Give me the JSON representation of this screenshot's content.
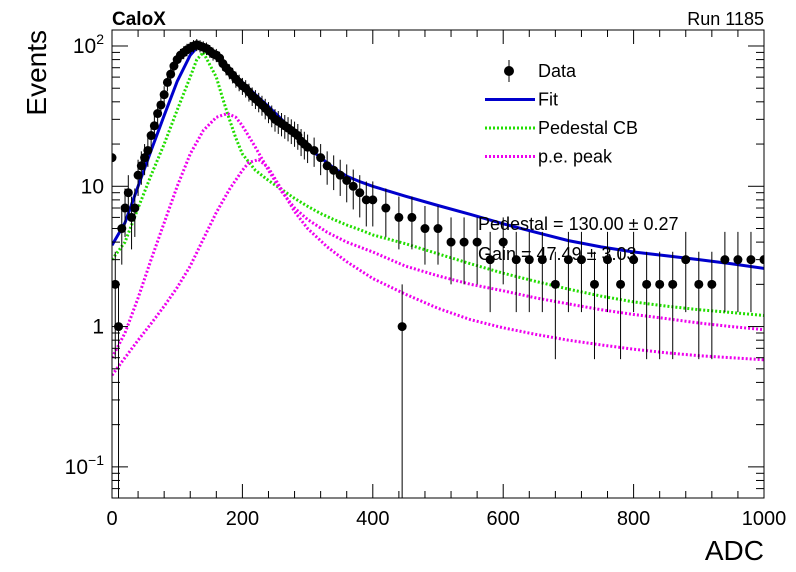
{
  "header": {
    "experiment": "CaloX",
    "run": "Run 1185"
  },
  "overlay": {
    "line1": "Pedestal = 130.00 ± 0.27",
    "line2": "Gain = 47.49 ± 3.03"
  },
  "chart_data": {
    "type": "scatter",
    "xlabel": "ADC",
    "ylabel": "Events",
    "xlim": [
      0,
      1000
    ],
    "ylim": [
      0.06,
      130
    ],
    "y_scale": "log",
    "x_ticks": [
      0,
      200,
      400,
      600,
      800,
      1000
    ],
    "y_ticks": [
      {
        "value": 0.1,
        "base": "10",
        "exp": "−1"
      },
      {
        "value": 1,
        "base": "1",
        "exp": ""
      },
      {
        "value": 10,
        "base": "10",
        "exp": ""
      },
      {
        "value": 100,
        "base": "10",
        "exp": "2"
      }
    ],
    "legend_position": "top-right",
    "legend": [
      {
        "label": "Data",
        "style": "marker",
        "color": "#000000"
      },
      {
        "label": "Fit",
        "style": "solid",
        "color": "#0000cc"
      },
      {
        "label": "Pedestal CB",
        "style": "dotted",
        "color": "#22dd00"
      },
      {
        "label": "p.e. peak",
        "style": "dotted",
        "color": "#ee00ee"
      }
    ],
    "data_points": {
      "x": [
        0,
        5,
        10,
        15,
        20,
        25,
        30,
        35,
        40,
        45,
        50,
        55,
        60,
        65,
        70,
        75,
        80,
        85,
        90,
        95,
        100,
        105,
        110,
        115,
        120,
        125,
        130,
        135,
        140,
        145,
        150,
        155,
        160,
        165,
        170,
        175,
        180,
        185,
        190,
        195,
        200,
        205,
        210,
        215,
        220,
        225,
        230,
        235,
        240,
        245,
        250,
        255,
        260,
        265,
        270,
        275,
        280,
        285,
        290,
        295,
        300,
        310,
        320,
        330,
        340,
        350,
        360,
        370,
        380,
        390,
        400,
        420,
        440,
        445,
        460,
        480,
        500,
        520,
        540,
        560,
        580,
        600,
        620,
        640,
        660,
        680,
        700,
        720,
        740,
        760,
        780,
        800,
        820,
        840,
        860,
        880,
        900,
        920,
        940,
        960,
        980,
        1000
      ],
      "y": [
        16,
        2,
        1,
        5,
        7,
        9,
        6,
        7,
        12,
        14,
        16,
        18,
        23,
        27,
        33,
        38,
        45,
        55,
        63,
        72,
        80,
        86,
        90,
        94,
        97,
        100,
        102,
        100,
        98,
        96,
        92,
        88,
        86,
        82,
        75,
        70,
        66,
        62,
        58,
        55,
        52,
        50,
        47,
        44,
        42,
        40,
        38,
        36,
        34,
        32,
        30,
        29,
        28,
        27,
        26,
        25,
        24,
        23,
        21,
        20,
        19,
        18,
        16,
        14,
        13,
        12,
        11,
        10,
        9,
        8,
        8,
        7,
        6,
        1,
        6,
        5,
        5,
        4,
        4,
        4,
        3,
        4,
        3,
        3,
        3,
        2,
        3,
        3,
        2,
        3,
        2,
        3,
        2,
        2,
        2,
        3,
        2,
        2,
        3,
        3,
        3,
        3
      ]
    },
    "series": [
      {
        "name": "Fit",
        "color": "#0000cc",
        "style": "solid",
        "x": [
          0,
          20,
          40,
          60,
          80,
          100,
          120,
          130,
          140,
          160,
          180,
          200,
          220,
          240,
          260,
          280,
          300,
          320,
          340,
          360,
          380,
          400,
          450,
          500,
          550,
          600,
          650,
          700,
          750,
          800,
          850,
          900,
          950,
          1000
        ],
        "y": [
          3.8,
          5.5,
          10,
          18,
          32,
          56,
          86,
          97,
          98,
          85,
          68,
          55,
          45,
          37,
          30,
          24,
          19,
          16,
          13.5,
          11.8,
          10.8,
          10,
          8.5,
          7.3,
          6.3,
          5.4,
          4.7,
          4.1,
          3.7,
          3.4,
          3.2,
          3,
          2.8,
          2.6
        ]
      },
      {
        "name": "Pedestal CB",
        "color": "#22dd00",
        "style": "dotted",
        "x": [
          0,
          20,
          40,
          60,
          80,
          100,
          120,
          130,
          140,
          160,
          170,
          180,
          190,
          200,
          220,
          240,
          260,
          280,
          300,
          320,
          340,
          360,
          380,
          400,
          450,
          500,
          550,
          600,
          650,
          700,
          750,
          800,
          850,
          900,
          950,
          1000
        ],
        "y": [
          3,
          4,
          7,
          12,
          20,
          35,
          60,
          80,
          90,
          60,
          42,
          30,
          22,
          17,
          13,
          11,
          9.5,
          8.2,
          7.2,
          6.4,
          5.8,
          5.3,
          4.9,
          4.5,
          3.9,
          3.3,
          2.8,
          2.4,
          2.1,
          1.85,
          1.65,
          1.5,
          1.4,
          1.32,
          1.26,
          1.2
        ]
      },
      {
        "name": "p.e. peak",
        "color": "#ee00ee",
        "style": "dotted",
        "x": [
          0,
          20,
          40,
          60,
          80,
          100,
          120,
          140,
          160,
          177,
          190,
          200,
          220,
          240,
          260,
          280,
          300,
          330,
          360,
          400,
          450,
          500,
          550,
          600,
          650,
          700,
          750,
          800,
          850,
          900,
          950,
          1000
        ],
        "y": [
          0.6,
          0.9,
          1.6,
          3,
          5.5,
          10,
          17,
          25,
          31,
          33,
          31,
          27,
          19,
          13,
          9.2,
          7,
          5.8,
          4.7,
          4,
          3.4,
          2.7,
          2.3,
          2,
          1.8,
          1.6,
          1.45,
          1.32,
          1.22,
          1.14,
          1.06,
          1,
          0.95
        ]
      },
      {
        "name": "p.e. peak",
        "color": "#ee00ee",
        "style": "dotted",
        "x": [
          0,
          20,
          40,
          60,
          80,
          100,
          120,
          140,
          160,
          180,
          200,
          210,
          225,
          240,
          260,
          280,
          300,
          330,
          360,
          400,
          450,
          500,
          550,
          600,
          650,
          700,
          750,
          800,
          850,
          900,
          950,
          1000
        ],
        "y": [
          0.45,
          0.6,
          0.8,
          1.05,
          1.4,
          1.9,
          2.7,
          4.2,
          6.5,
          9.5,
          13,
          14.8,
          15.5,
          13.5,
          9.5,
          6.6,
          5,
          3.7,
          2.9,
          2.2,
          1.7,
          1.35,
          1.12,
          0.98,
          0.88,
          0.8,
          0.74,
          0.69,
          0.65,
          0.62,
          0.6,
          0.58
        ]
      }
    ]
  }
}
